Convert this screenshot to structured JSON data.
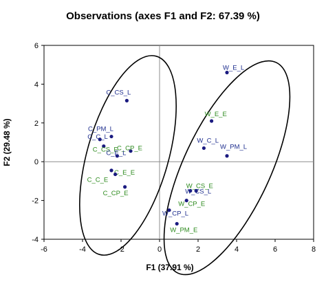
{
  "chart_data": {
    "type": "scatter",
    "title": "Observations (axes F1 and F2: 67.39 %)",
    "xlabel": "F1 (37.91 %)",
    "ylabel": "F2 (29.48 %)",
    "xlim": [
      -6,
      8
    ],
    "ylim": [
      -4,
      6
    ],
    "xticks": [
      -6,
      -4,
      -2,
      0,
      2,
      4,
      6,
      8
    ],
    "yticks": [
      -4,
      -2,
      0,
      2,
      4,
      6
    ],
    "grid": false,
    "colors": {
      "L": "#1f2f8f",
      "E": "#2e8b1f",
      "point": "#1a1a80",
      "frame": "#000000",
      "zero_line": "#8c8c8c"
    },
    "points": [
      {
        "label": "W_E_L",
        "x": 3.5,
        "y": 4.6,
        "group": "L"
      },
      {
        "label": "W_E_E",
        "x": 2.7,
        "y": 2.1,
        "group": "E"
      },
      {
        "label": "W_C_L",
        "x": 2.3,
        "y": 0.7,
        "group": "L"
      },
      {
        "label": "W_PM_L",
        "x": 3.5,
        "y": 0.3,
        "group": "L"
      },
      {
        "label": "W_CS_E",
        "x": 1.6,
        "y": -1.5,
        "group": "E"
      },
      {
        "label": "W_CS_L",
        "x": 1.9,
        "y": -1.5,
        "group": "L"
      },
      {
        "label": "W_CP_E",
        "x": 1.4,
        "y": -2.0,
        "group": "E"
      },
      {
        "label": "W_CP_L",
        "x": 0.5,
        "y": -2.5,
        "group": "L"
      },
      {
        "label": "W_PM_E",
        "x": 0.9,
        "y": -3.2,
        "group": "E"
      },
      {
        "label": "C_CS_L",
        "x": -1.7,
        "y": 3.15,
        "group": "L"
      },
      {
        "label": "C_PM_L",
        "x": -2.5,
        "y": 1.3,
        "group": "L"
      },
      {
        "label": "C_C_L",
        "x": -3.1,
        "y": 1.15,
        "group": "L"
      },
      {
        "label": "C_CP_E",
        "x": -1.5,
        "y": 0.55,
        "group": "E"
      },
      {
        "label": "C_CS_E",
        "x": -2.9,
        "y": 0.8,
        "group": "E"
      },
      {
        "label": "C_E_L",
        "x": -2.2,
        "y": 0.3,
        "group": "L"
      },
      {
        "label": "C_E_E",
        "x": -2.5,
        "y": -0.45,
        "group": "E"
      },
      {
        "label": "C_C_E",
        "x": -2.3,
        "y": -0.65,
        "group": "E"
      },
      {
        "label": "C_CP_E",
        "x": -1.8,
        "y": -1.3,
        "group": "E"
      }
    ]
  }
}
